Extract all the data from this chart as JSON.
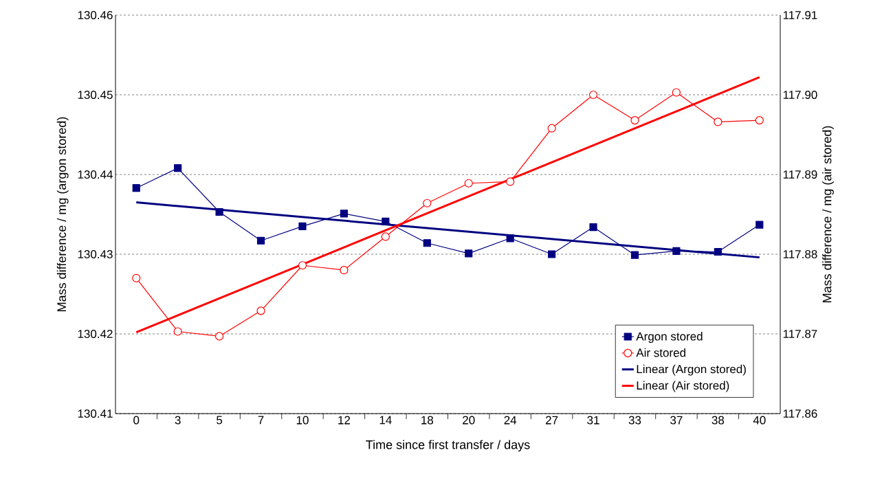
{
  "chart_data": {
    "type": "line",
    "xlabel": "Time since first transfer / days",
    "ylabel": "Mass difference / mg (argon stored)",
    "y2label": "Mass difference / mg (air stored)",
    "categories": [
      "0",
      "3",
      "5",
      "7",
      "10",
      "12",
      "14",
      "18",
      "20",
      "24",
      "27",
      "31",
      "33",
      "37",
      "38",
      "40"
    ],
    "ylim": [
      130.41,
      130.46
    ],
    "yticks": [
      130.41,
      130.42,
      130.43,
      130.44,
      130.45,
      130.46
    ],
    "y2lim": [
      117.86,
      117.91
    ],
    "y2ticks": [
      117.86,
      117.87,
      117.88,
      117.89,
      {
        "value": 117.9,
        "label": "117.90"
      },
      117.91
    ],
    "grid": "y",
    "legend": "bottom right",
    "series": [
      {
        "name": "Argon stored",
        "color": "#000080",
        "marker": "square",
        "values": [
          130.4383,
          130.4408,
          130.4353,
          130.4317,
          130.4335,
          130.4351,
          130.4341,
          130.4314,
          130.4301,
          130.432,
          130.43,
          130.4334,
          130.4299,
          130.4304,
          130.4303,
          130.4337
        ]
      },
      {
        "name": "Air stored",
        "color": "#ff0000",
        "marker": "circle",
        "axis": "y2",
        "values": [
          117.877,
          117.8703,
          117.8697,
          117.8729,
          117.8786,
          117.878,
          117.8822,
          117.8864,
          117.8889,
          117.8891,
          117.8958,
          117.9,
          117.8968,
          117.9003,
          117.8966,
          117.8968
        ]
      },
      {
        "name": "Linear (Argon stored)",
        "color": "#000080",
        "marker": "none",
        "values": [
          130.4365,
          null,
          null,
          null,
          null,
          null,
          null,
          null,
          null,
          null,
          null,
          null,
          null,
          null,
          null,
          130.4296
        ]
      },
      {
        "name": "Linear (Air stored)",
        "color": "#ff0000",
        "marker": "none",
        "axis": "y2",
        "values": [
          117.8702,
          null,
          null,
          null,
          null,
          null,
          null,
          null,
          null,
          null,
          null,
          null,
          null,
          null,
          null,
          117.9022
        ]
      }
    ]
  }
}
